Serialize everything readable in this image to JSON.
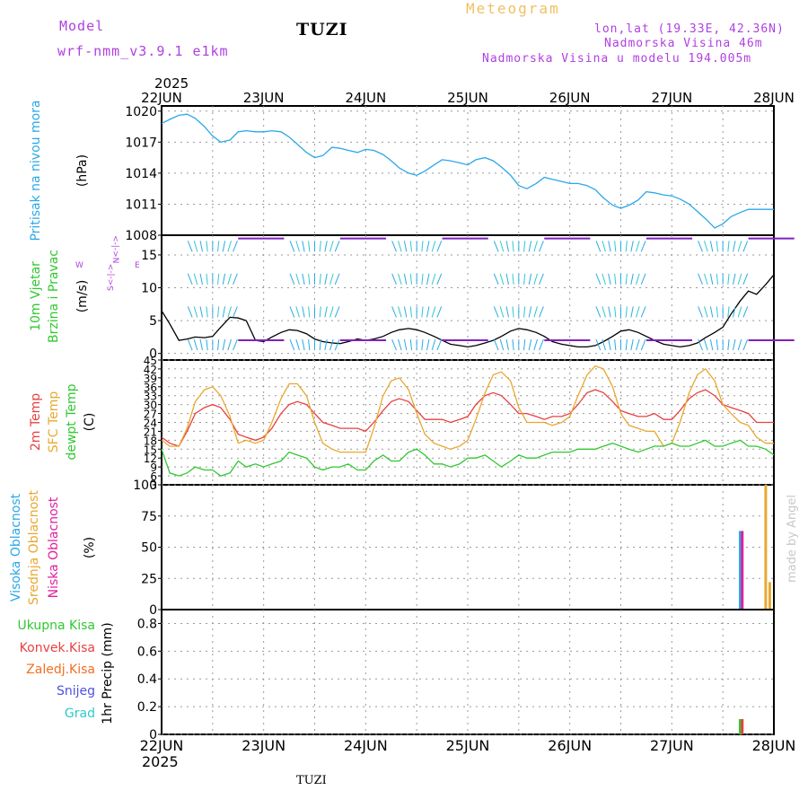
{
  "header": {
    "model_label": "Model",
    "model_name": "wrf-nmm_v3.9.1  e1km",
    "station": "TUZI",
    "meteogram_title": "Meteogram",
    "coords": "lon,lat (19.33E, 42.36N)",
    "elevation": "Nadmorska Visina 46m",
    "model_elevation": "Nadmorska Visina u modelu 194.005m",
    "year": "2025",
    "footer_station": "TUZI",
    "watermark": "made by Angel"
  },
  "colors": {
    "pressure": "#2aa8e8",
    "temp2m": "#e84040",
    "sfc": "#e8a830",
    "dew": "#30c830",
    "high_cloud": "#2aa8e8",
    "mid_cloud": "#e8a830",
    "low_cloud": "#e020a0",
    "total_precip": "#30c830",
    "conv_precip": "#e84040",
    "frz_precip": "#f07020",
    "snow": "#5050e0",
    "hail": "#30c8c8",
    "wind_arrows": "#8020c0",
    "wind_purple": "#b040e0",
    "wind_green": "#30c830"
  },
  "x_axis": {
    "labels": [
      "22JUN",
      "23JUN",
      "24JUN",
      "25JUN",
      "26JUN",
      "27JUN",
      "28JUN"
    ]
  },
  "panels": {
    "pressure": {
      "label": "Pritisak na nivou mora",
      "unit": "(hPa)",
      "ticks": [
        "1020",
        "1017",
        "1014",
        "1011",
        "1008"
      ]
    },
    "wind": {
      "label1": "10m Vjetar",
      "label2": "Brzina i Pravac",
      "unit": "(m/s)",
      "ticks": [
        "15",
        "10",
        "5",
        "0"
      ],
      "compass_w": "W",
      "compass_e": "E",
      "compass_n": "<-|->N",
      "compass_s": "S<-|->"
    },
    "temp": {
      "label1": "2m Temp",
      "label2": "SFC Temp",
      "label3": "dewpt Temp",
      "unit": "(C)",
      "ticks": [
        "45",
        "42",
        "39",
        "36",
        "33",
        "30",
        "27",
        "24",
        "21",
        "18",
        "15",
        "12",
        "9",
        "6",
        "3"
      ]
    },
    "cloud": {
      "label1": "Visoka Oblacnost",
      "label2": "Srednja Oblacnost",
      "label3": "Niska Oblacnost",
      "unit": "(%)",
      "ticks": [
        "100",
        "75",
        "50",
        "25",
        "0"
      ]
    },
    "precip": {
      "labels": [
        "Ukupna Kisa",
        "Konvek.Kisa",
        "Zaledj.Kisa",
        "Snijeg",
        "Grad"
      ],
      "unit": "1hr Precip (mm)",
      "ticks": [
        "0.8",
        "0.6",
        "0.4",
        "0.2",
        "0"
      ]
    }
  },
  "chart_data": [
    {
      "type": "line",
      "xlim": [
        0,
        6
      ],
      "ylim": [
        1008,
        1020.5
      ],
      "series": [
        {
          "x": [
            0,
            0.08,
            0.17,
            0.25,
            0.33,
            0.42,
            0.5,
            0.58,
            0.67,
            0.75,
            0.83,
            0.92,
            1.0,
            1.08,
            1.17,
            1.25,
            1.33,
            1.42,
            1.5,
            1.58,
            1.67,
            1.75,
            1.83,
            1.92,
            2.0,
            2.08,
            2.17,
            2.25,
            2.33,
            2.42,
            2.5,
            2.58,
            2.67,
            2.75,
            2.83,
            2.92,
            3.0,
            3.08,
            3.17,
            3.25,
            3.33,
            3.42,
            3.5,
            3.58,
            3.67,
            3.75,
            3.83,
            3.92,
            4.0,
            4.08,
            4.17,
            4.25,
            4.33,
            4.42,
            4.5,
            4.58,
            4.67,
            4.75,
            4.83,
            4.92,
            5.0,
            5.08,
            5.17,
            5.25,
            5.33,
            5.42,
            5.5,
            5.58,
            5.67,
            5.75,
            5.83,
            5.92,
            6.0
          ],
          "values": [
            1018.8,
            1019.2,
            1019.6,
            1019.7,
            1019.3,
            1018.5,
            1017.6,
            1017.0,
            1017.2,
            1018.0,
            1018.1,
            1018.0,
            1018.0,
            1018.1,
            1018.0,
            1017.5,
            1016.8,
            1016.0,
            1015.5,
            1015.7,
            1016.5,
            1016.4,
            1016.2,
            1016.0,
            1016.3,
            1016.2,
            1015.8,
            1015.2,
            1014.5,
            1014.0,
            1013.8,
            1014.2,
            1014.8,
            1015.3,
            1015.2,
            1015.0,
            1014.8,
            1015.3,
            1015.5,
            1015.2,
            1014.6,
            1013.8,
            1012.8,
            1012.5,
            1013.0,
            1013.6,
            1013.4,
            1013.2,
            1013.0,
            1013.0,
            1012.8,
            1012.4,
            1011.6,
            1010.9,
            1010.6,
            1010.9,
            1011.4,
            1012.2,
            1012.1,
            1011.9,
            1011.8,
            1011.5,
            1011.0,
            1010.3,
            1009.6,
            1008.7,
            1009.1,
            1009.8,
            1010.2,
            1010.5,
            1010.5,
            1010.5,
            1010.5
          ]
        }
      ]
    },
    {
      "type": "line",
      "xlim": [
        0,
        6
      ],
      "ylim": [
        -1,
        18
      ],
      "series": [
        {
          "x": [
            0,
            0.08,
            0.17,
            0.25,
            0.33,
            0.42,
            0.5,
            0.58,
            0.67,
            0.75,
            0.83,
            0.92,
            1.0,
            1.08,
            1.17,
            1.25,
            1.33,
            1.42,
            1.5,
            1.58,
            1.67,
            1.75,
            1.83,
            1.92,
            2.0,
            2.08,
            2.17,
            2.25,
            2.33,
            2.42,
            2.5,
            2.58,
            2.67,
            2.75,
            2.83,
            2.92,
            3.0,
            3.08,
            3.17,
            3.25,
            3.33,
            3.42,
            3.5,
            3.58,
            3.67,
            3.75,
            3.83,
            3.92,
            4.0,
            4.08,
            4.17,
            4.25,
            4.33,
            4.42,
            4.5,
            4.58,
            4.67,
            4.75,
            4.83,
            4.92,
            5.0,
            5.08,
            5.17,
            5.25,
            5.33,
            5.42,
            5.5,
            5.58,
            5.67,
            5.75,
            5.83,
            5.92,
            6.0
          ],
          "values": [
            6.5,
            4.5,
            2.0,
            2.2,
            2.5,
            2.4,
            2.6,
            4.0,
            5.5,
            5.4,
            5.0,
            2.0,
            1.8,
            2.5,
            3.2,
            3.6,
            3.5,
            3.0,
            2.2,
            1.8,
            1.6,
            1.5,
            1.8,
            2.2,
            2.0,
            2.2,
            2.6,
            3.2,
            3.6,
            3.8,
            3.6,
            3.2,
            2.6,
            2.0,
            1.4,
            1.2,
            1.0,
            1.2,
            1.6,
            2.0,
            2.6,
            3.4,
            3.8,
            3.6,
            3.2,
            2.6,
            1.8,
            1.4,
            1.2,
            1.0,
            1.0,
            1.2,
            1.8,
            2.6,
            3.4,
            3.6,
            3.2,
            2.6,
            2.0,
            1.4,
            1.2,
            1.0,
            1.2,
            1.6,
            2.4,
            3.2,
            4.0,
            6.0,
            8.0,
            9.5,
            9.0,
            10.5,
            12.0
          ]
        }
      ]
    },
    {
      "type": "line",
      "xlim": [
        0,
        6
      ],
      "ylim": [
        3,
        45
      ],
      "series": [
        {
          "x": [
            0,
            0.08,
            0.17,
            0.25,
            0.33,
            0.42,
            0.5,
            0.58,
            0.67,
            0.75,
            0.83,
            0.92,
            1.0,
            1.08,
            1.17,
            1.25,
            1.33,
            1.42,
            1.5,
            1.58,
            1.67,
            1.75,
            1.83,
            1.92,
            2.0,
            2.08,
            2.17,
            2.25,
            2.33,
            2.42,
            2.5,
            2.58,
            2.67,
            2.75,
            2.83,
            2.92,
            3.0,
            3.08,
            3.17,
            3.25,
            3.33,
            3.42,
            3.5,
            3.58,
            3.67,
            3.75,
            3.83,
            3.92,
            4.0,
            4.08,
            4.17,
            4.25,
            4.33,
            4.42,
            4.5,
            4.58,
            4.67,
            4.75,
            4.83,
            4.92,
            5.0,
            5.08,
            5.17,
            5.25,
            5.33,
            5.42,
            5.5,
            5.58,
            5.67,
            5.75,
            5.83,
            5.92,
            6.0
          ],
          "values": [
            19,
            17,
            16,
            21,
            27,
            29,
            30,
            29,
            25,
            20,
            19,
            18,
            19,
            22,
            27,
            30,
            31,
            30,
            27,
            24,
            23,
            22,
            22,
            22,
            21,
            24,
            28,
            31,
            32,
            31,
            28,
            25,
            25,
            25,
            24,
            25,
            26,
            30,
            33,
            34,
            33,
            30,
            27,
            27,
            26,
            25,
            26,
            26,
            27,
            30,
            34,
            35,
            34,
            31,
            28,
            27,
            26,
            26,
            27,
            25,
            25,
            28,
            32,
            34,
            35,
            33,
            30,
            29,
            28,
            27,
            24,
            24,
            24
          ]
        },
        {
          "x": [
            0,
            0.08,
            0.17,
            0.25,
            0.33,
            0.42,
            0.5,
            0.58,
            0.67,
            0.75,
            0.83,
            0.92,
            1.0,
            1.08,
            1.17,
            1.25,
            1.33,
            1.42,
            1.5,
            1.58,
            1.67,
            1.75,
            1.83,
            1.92,
            2.0,
            2.08,
            2.17,
            2.25,
            2.33,
            2.42,
            2.5,
            2.58,
            2.67,
            2.75,
            2.83,
            2.92,
            3.0,
            3.08,
            3.17,
            3.25,
            3.33,
            3.42,
            3.5,
            3.58,
            3.67,
            3.75,
            3.83,
            3.92,
            4.0,
            4.08,
            4.17,
            4.25,
            4.33,
            4.42,
            4.5,
            4.58,
            4.67,
            4.75,
            4.83,
            4.92,
            5.0,
            5.08,
            5.17,
            5.25,
            5.33,
            5.42,
            5.5,
            5.58,
            5.67,
            5.75,
            5.83,
            5.92,
            6.0
          ],
          "values": [
            18,
            16,
            16,
            22,
            31,
            35,
            36,
            33,
            26,
            17,
            18,
            17,
            18,
            24,
            32,
            37,
            37,
            33,
            24,
            17,
            15,
            14,
            14,
            14,
            14,
            22,
            33,
            38,
            39,
            35,
            27,
            20,
            17,
            16,
            15,
            16,
            18,
            25,
            34,
            40,
            41,
            38,
            29,
            24,
            24,
            24,
            23,
            24,
            26,
            33,
            40,
            43,
            42,
            36,
            27,
            23,
            22,
            21,
            21,
            16,
            17,
            24,
            34,
            40,
            42,
            38,
            30,
            27,
            24,
            23,
            19,
            17,
            17
          ]
        },
        {
          "x": [
            0,
            0.08,
            0.17,
            0.25,
            0.33,
            0.42,
            0.5,
            0.58,
            0.67,
            0.75,
            0.83,
            0.92,
            1.0,
            1.08,
            1.17,
            1.25,
            1.33,
            1.42,
            1.5,
            1.58,
            1.67,
            1.75,
            1.83,
            1.92,
            2.0,
            2.08,
            2.17,
            2.25,
            2.33,
            2.42,
            2.5,
            2.58,
            2.67,
            2.75,
            2.83,
            2.92,
            3.0,
            3.08,
            3.17,
            3.25,
            3.33,
            3.42,
            3.5,
            3.58,
            3.67,
            3.75,
            3.83,
            3.92,
            4.0,
            4.08,
            4.17,
            4.25,
            4.33,
            4.42,
            4.5,
            4.58,
            4.67,
            4.75,
            4.83,
            4.92,
            5.0,
            5.08,
            5.17,
            5.25,
            5.33,
            5.42,
            5.5,
            5.58,
            5.67,
            5.75,
            5.83,
            5.92,
            6.0
          ],
          "values": [
            15,
            7,
            6,
            7,
            9,
            8,
            8,
            6,
            7,
            11,
            9,
            10,
            9,
            10,
            11,
            14,
            13,
            12,
            9,
            8,
            9,
            9,
            10,
            8,
            8,
            11,
            13,
            11,
            11,
            14,
            15,
            13,
            10,
            10,
            9,
            10,
            12,
            12,
            13,
            11,
            9,
            11,
            13,
            12,
            12,
            13,
            14,
            14,
            14,
            15,
            15,
            15,
            16,
            17,
            16,
            15,
            14,
            15,
            16,
            16,
            17,
            16,
            16,
            17,
            18,
            16,
            16,
            17,
            18,
            16,
            16,
            15,
            13
          ]
        }
      ]
    },
    {
      "type": "bar",
      "xlim": [
        0,
        6
      ],
      "ylim": [
        0,
        100
      ],
      "series": [
        {
          "x": [
            5.67
          ],
          "values": [
            63
          ]
        },
        {
          "x": [
            5.92,
            5.96
          ],
          "values": [
            100,
            22
          ]
        },
        {
          "x": [
            5.69
          ],
          "values": [
            63
          ]
        }
      ]
    },
    {
      "type": "bar",
      "xlim": [
        0,
        6
      ],
      "ylim": [
        0,
        0.9
      ],
      "series": [
        {
          "x": [
            5.67
          ],
          "values": [
            0.11
          ]
        },
        {
          "x": [
            5.69
          ],
          "values": [
            0.11
          ]
        }
      ]
    }
  ]
}
